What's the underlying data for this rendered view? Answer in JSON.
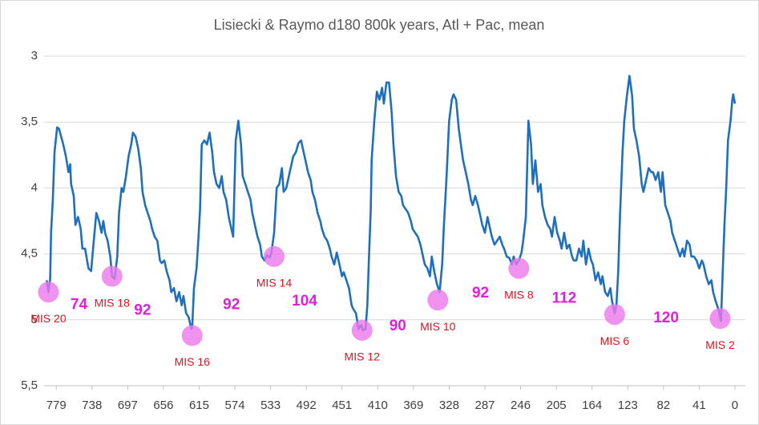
{
  "chart_data": {
    "type": "line",
    "title": "Lisiecki & Raymo d180 800k years, Atl + Pac, mean",
    "x": [
      790,
      788,
      786,
      785,
      783,
      781,
      778,
      776,
      773,
      771,
      768,
      765,
      763,
      762,
      759,
      757,
      754,
      751,
      749,
      746,
      742,
      739,
      736,
      733,
      730,
      727,
      725,
      723,
      720,
      717,
      715,
      712,
      709,
      707,
      704,
      702,
      699,
      696,
      693,
      691,
      688,
      685,
      682,
      680,
      677,
      674,
      671,
      669,
      666,
      663,
      660,
      658,
      655,
      652,
      649,
      647,
      644,
      641,
      638,
      635,
      633,
      630,
      627,
      624,
      623,
      621,
      618,
      616,
      614,
      612,
      609,
      606,
      603,
      600,
      598,
      595,
      592,
      589,
      587,
      584,
      581,
      578,
      576,
      573,
      570,
      567,
      565,
      562,
      559,
      556,
      554,
      551,
      548,
      545,
      543,
      540,
      537,
      534,
      532,
      529,
      526,
      523,
      520,
      518,
      515,
      512,
      509,
      507,
      504,
      501,
      498,
      496,
      493,
      490,
      487,
      485,
      482,
      479,
      476,
      474,
      471,
      468,
      465,
      463,
      460,
      457,
      454,
      451,
      449,
      446,
      443,
      440,
      438,
      435,
      432,
      429,
      427,
      424,
      422,
      420,
      418,
      417,
      414,
      411,
      408,
      405,
      403,
      400,
      397,
      394,
      392,
      389,
      386,
      383,
      381,
      378,
      375,
      372,
      370,
      367,
      364,
      361,
      359,
      356,
      353,
      350,
      348,
      345,
      342,
      339,
      336,
      334,
      331,
      328,
      325,
      323,
      320,
      317,
      314,
      312,
      309,
      306,
      303,
      301,
      298,
      295,
      292,
      290,
      287,
      284,
      281,
      279,
      276,
      273,
      270,
      267,
      265,
      262,
      259,
      256,
      254,
      251,
      248,
      245,
      243,
      240,
      237,
      234,
      232,
      229,
      226,
      223,
      221,
      218,
      215,
      212,
      210,
      207,
      204,
      201,
      199,
      196,
      193,
      190,
      187,
      185,
      182,
      179,
      176,
      174,
      171,
      168,
      165,
      163,
      160,
      157,
      154,
      152,
      149,
      146,
      143,
      141,
      138,
      136,
      134,
      132,
      129,
      127,
      124,
      121,
      118,
      116,
      113,
      110,
      107,
      105,
      102,
      99,
      96,
      94,
      91,
      88,
      85,
      83,
      80,
      77,
      74,
      72,
      69,
      66,
      63,
      60,
      58,
      55,
      52,
      50,
      47,
      44,
      41,
      38,
      36,
      33,
      30,
      27,
      25,
      22,
      19,
      16,
      14,
      12,
      10,
      8,
      5,
      3,
      2,
      0
    ],
    "series": [
      {
        "color": "#1f6fbf",
        "values": [
          4.7,
          4.79,
          4.69,
          4.34,
          4.09,
          3.73,
          3.54,
          3.55,
          3.62,
          3.67,
          3.76,
          3.88,
          3.82,
          3.97,
          4.06,
          4.28,
          4.22,
          4.31,
          4.46,
          4.46,
          4.61,
          4.63,
          4.4,
          4.19,
          4.25,
          4.34,
          4.25,
          4.34,
          4.4,
          4.52,
          4.67,
          4.69,
          4.52,
          4.19,
          4.0,
          4.03,
          3.91,
          3.76,
          3.67,
          3.58,
          3.61,
          3.7,
          3.85,
          4.03,
          4.13,
          4.19,
          4.25,
          4.31,
          4.37,
          4.4,
          4.55,
          4.57,
          4.55,
          4.64,
          4.7,
          4.79,
          4.76,
          4.86,
          4.79,
          4.89,
          4.82,
          4.95,
          4.98,
          5.07,
          5.06,
          4.76,
          4.61,
          4.4,
          4.16,
          3.67,
          3.64,
          3.67,
          3.58,
          3.73,
          3.88,
          3.97,
          4.0,
          3.91,
          4.03,
          4.09,
          4.22,
          4.31,
          4.37,
          3.64,
          3.49,
          3.67,
          3.91,
          3.97,
          4.03,
          4.09,
          4.19,
          4.28,
          4.37,
          4.43,
          4.52,
          4.55,
          4.51,
          4.53,
          4.49,
          4.34,
          4.0,
          3.97,
          3.85,
          4.03,
          4.0,
          3.91,
          3.82,
          3.76,
          3.73,
          3.66,
          3.64,
          3.7,
          3.79,
          3.88,
          3.94,
          4.03,
          4.09,
          4.19,
          4.25,
          4.31,
          4.37,
          4.4,
          4.46,
          4.52,
          4.58,
          4.49,
          4.58,
          4.67,
          4.64,
          4.7,
          4.76,
          4.89,
          4.92,
          4.95,
          5.07,
          5.04,
          5.08,
          5.07,
          4.89,
          4.52,
          4.16,
          3.79,
          3.49,
          3.27,
          3.33,
          3.24,
          3.36,
          3.2,
          3.2,
          3.43,
          3.67,
          3.91,
          4.03,
          4.06,
          4.13,
          4.16,
          4.19,
          4.25,
          4.31,
          4.34,
          4.37,
          4.43,
          4.49,
          4.58,
          4.61,
          4.67,
          4.52,
          4.64,
          4.73,
          4.79,
          4.58,
          4.28,
          3.91,
          3.49,
          3.33,
          3.29,
          3.33,
          3.55,
          3.7,
          3.79,
          3.88,
          3.97,
          4.09,
          4.13,
          4.06,
          4.13,
          4.22,
          4.28,
          4.34,
          4.22,
          4.31,
          4.37,
          4.43,
          4.4,
          4.37,
          4.43,
          4.46,
          4.52,
          4.53,
          4.58,
          4.52,
          4.58,
          4.55,
          4.49,
          4.4,
          4.22,
          3.49,
          3.67,
          3.97,
          3.79,
          4.03,
          3.97,
          4.13,
          4.22,
          4.28,
          4.31,
          4.37,
          4.22,
          4.34,
          4.4,
          4.46,
          4.34,
          4.46,
          4.43,
          4.52,
          4.55,
          4.55,
          4.46,
          4.52,
          4.4,
          4.58,
          4.46,
          4.55,
          4.58,
          4.7,
          4.64,
          4.73,
          4.67,
          4.79,
          4.82,
          4.76,
          4.86,
          4.95,
          4.89,
          4.64,
          4.22,
          3.73,
          3.49,
          3.3,
          3.15,
          3.3,
          3.55,
          3.64,
          3.76,
          3.97,
          4.03,
          3.94,
          3.85,
          3.88,
          3.88,
          3.94,
          3.88,
          4.03,
          3.88,
          4.13,
          4.19,
          4.25,
          4.34,
          4.4,
          4.46,
          4.52,
          4.46,
          4.52,
          4.4,
          4.43,
          4.52,
          4.52,
          4.55,
          4.61,
          4.55,
          4.58,
          4.67,
          4.73,
          4.7,
          4.79,
          4.86,
          4.92,
          5.01,
          4.64,
          4.28,
          4.0,
          3.64,
          3.49,
          3.33,
          3.29,
          3.36
        ]
      }
    ],
    "xlim": [
      793,
      -12
    ],
    "xticks": [
      779,
      738,
      697,
      656,
      615,
      574,
      533,
      492,
      451,
      410,
      369,
      328,
      287,
      246,
      205,
      164,
      123,
      82,
      41,
      0
    ],
    "ylim": [
      3,
      5.5
    ],
    "y_reversed": true,
    "yticks": [
      3,
      {
        "value": 3.5,
        "label": "3,5"
      },
      4,
      {
        "value": 4.5,
        "label": "4,5"
      },
      5,
      {
        "value": 5.5,
        "label": "5,5"
      }
    ],
    "grid": true,
    "annotations": [
      {
        "text": "MIS 20",
        "x": 788,
        "y": 4.79
      },
      {
        "text": "MIS 18",
        "x": 715,
        "y": 4.67
      },
      {
        "text": "MIS 16",
        "x": 623,
        "y": 5.12
      },
      {
        "text": "MIS 14",
        "x": 529,
        "y": 4.52
      },
      {
        "text": "MIS 12",
        "x": 428,
        "y": 5.08
      },
      {
        "text": "MIS 10",
        "x": 341,
        "y": 4.85
      },
      {
        "text": "MIS 8",
        "x": 248,
        "y": 4.61
      },
      {
        "text": "MIS 6",
        "x": 138,
        "y": 4.96
      },
      {
        "text": "MIS 2",
        "x": 17,
        "y": 4.99
      }
    ],
    "cycle_labels": [
      {
        "value": 74,
        "x": 753,
        "y": 4.89
      },
      {
        "value": 92,
        "x": 680,
        "y": 4.93
      },
      {
        "value": 92,
        "x": 578,
        "y": 4.89
      },
      {
        "value": 104,
        "x": 494,
        "y": 4.86
      },
      {
        "value": 90,
        "x": 387,
        "y": 5.05
      },
      {
        "value": 92,
        "x": 292,
        "y": 4.8
      },
      {
        "value": 112,
        "x": 196,
        "y": 4.84
      },
      {
        "value": 120,
        "x": 79,
        "y": 4.99
      }
    ]
  }
}
